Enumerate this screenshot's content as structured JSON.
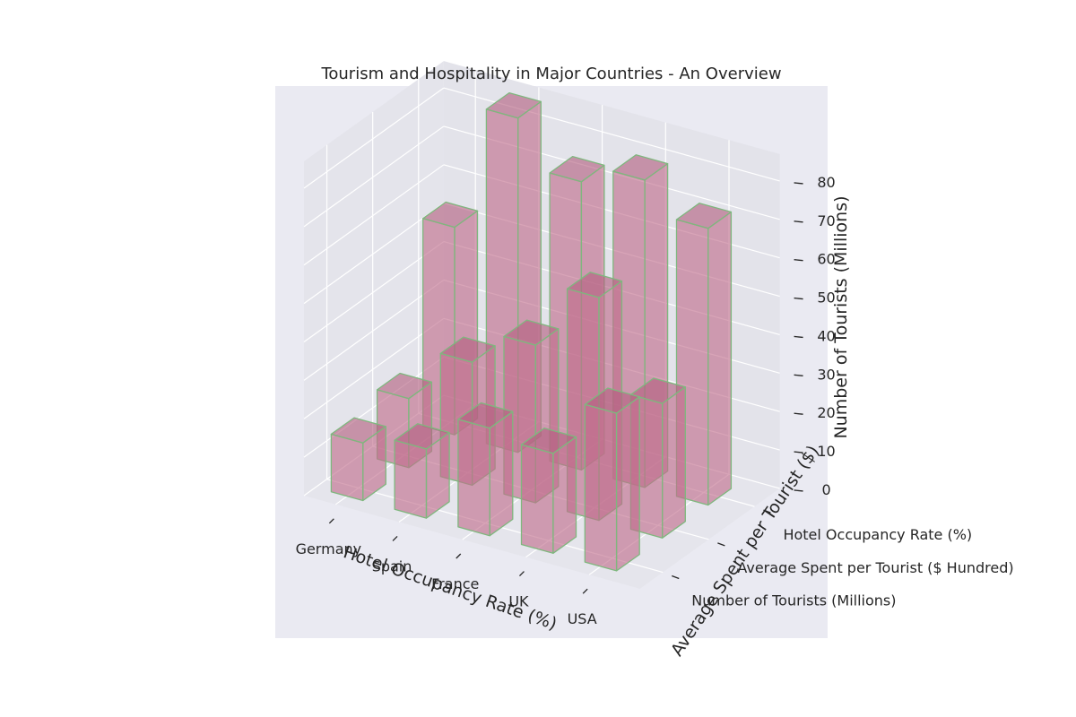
{
  "chart_data": {
    "type": "bar3d",
    "title": "Tourism and Hospitality in Major Countries - An Overview",
    "xlabel": "Hotel Occupancy Rate (%)",
    "ylabel": "Average Spent per Tourist ($)",
    "zlabel": "Number of Tourists (Millions)",
    "categories": [
      "Germany",
      "Spain",
      "France",
      "UK",
      "USA"
    ],
    "series": [
      {
        "name": "Number of Tourists (Millions)",
        "values": [
          15,
          18,
          28,
          26,
          41
        ]
      },
      {
        "name": "Average Spent per Tourist ($ Hundred)",
        "values": [
          18,
          32,
          41,
          58,
          35
        ]
      },
      {
        "name": "Hotel Occupancy Rate (%)",
        "values": [
          54,
          87,
          75,
          80,
          72
        ]
      }
    ],
    "z_ticks": [
      0,
      10,
      20,
      30,
      40,
      50,
      60,
      70,
      80
    ],
    "zlim": [
      0,
      87
    ],
    "grid": true,
    "colors": {
      "pane": "#eaeaf2",
      "background": "#ffffff",
      "bar_fill": "#c06c8a",
      "bar_edge": "#7fb77e",
      "grid": "#ffffff",
      "text": "#262626"
    }
  }
}
